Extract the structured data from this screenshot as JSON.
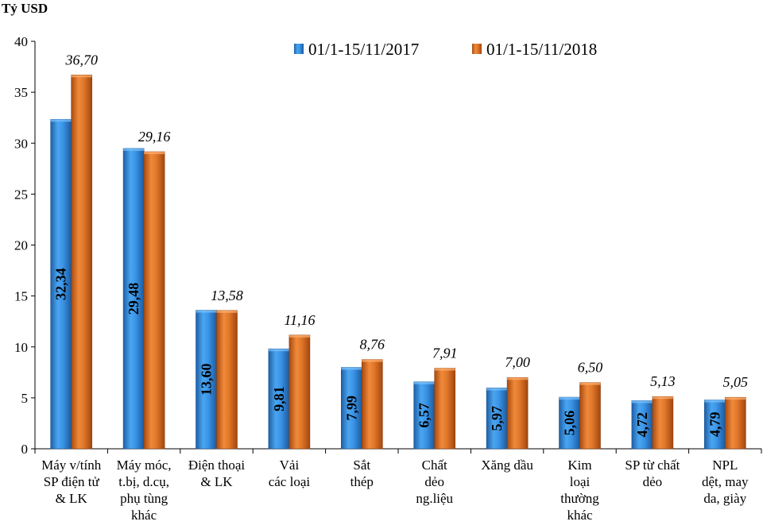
{
  "chart_data": {
    "type": "bar",
    "title": "",
    "unit_label": "Tỷ USD",
    "xlabel": "",
    "ylabel": "Tỷ USD",
    "ylim": [
      0,
      40
    ],
    "yticks": [
      0,
      5,
      10,
      15,
      20,
      25,
      30,
      35,
      40
    ],
    "grid": false,
    "legend_position": "top-right",
    "categories": [
      [
        "Máy v/tính",
        "SP điện tử",
        "& LK"
      ],
      [
        "Máy móc,",
        "t.bị, d.cụ,",
        "phụ tùng",
        "khác"
      ],
      [
        "Điện thoại",
        "& LK"
      ],
      [
        "Vải",
        "các loại"
      ],
      [
        "Sắt",
        "thép"
      ],
      [
        "Chất",
        "dẻo",
        "ng.liệu"
      ],
      [
        "Xăng dầu"
      ],
      [
        "Kim",
        "loại",
        "thường",
        "khác"
      ],
      [
        "SP từ chất",
        "dẻo"
      ],
      [
        "NPL",
        "dệt, may",
        "da, giày"
      ]
    ],
    "series": [
      {
        "name": "01/1-15/11/2017",
        "color": "#2E86DE",
        "values": [
          32.34,
          29.48,
          13.6,
          9.81,
          7.99,
          6.57,
          5.97,
          5.06,
          4.72,
          4.79
        ],
        "labels": [
          "32,34",
          "29,48",
          "13,60",
          "9,81",
          "7,99",
          "6,57",
          "5,97",
          "5,06",
          "4,72",
          "4,79"
        ]
      },
      {
        "name": "01/1-15/11/2018",
        "color": "#E07020",
        "values": [
          36.7,
          29.16,
          13.58,
          11.16,
          8.76,
          7.91,
          7.0,
          6.5,
          5.13,
          5.05
        ],
        "labels": [
          "36,70",
          "29,16",
          "13,58",
          "11,16",
          "8,76",
          "7,91",
          "7,00",
          "6,50",
          "5,13",
          "5,05"
        ]
      }
    ]
  }
}
